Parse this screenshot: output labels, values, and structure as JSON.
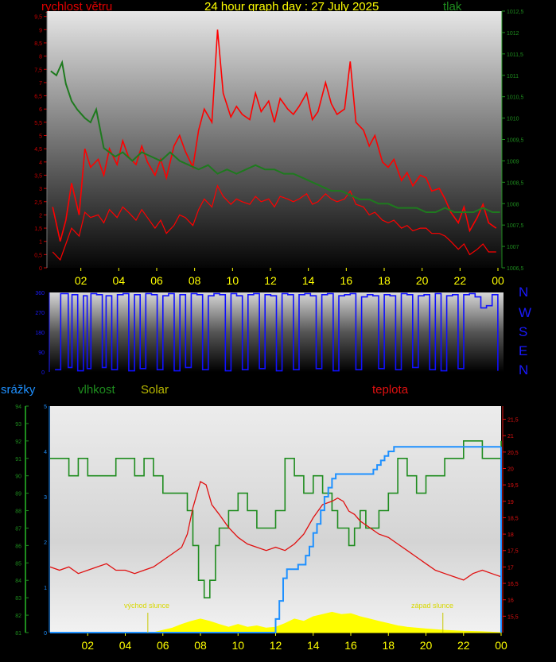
{
  "header": {
    "wind_label": "rychlost větru",
    "title": "24 hour graph day : 27 July 2025",
    "pressure_label": "tlak"
  },
  "direction_compass": [
    "N",
    "W",
    "S",
    "E",
    "N"
  ],
  "bottom_header": {
    "rain_label": "srážky",
    "humidity_label": "vlhkost",
    "solar_label": "Solar",
    "temp_label": "teplota"
  },
  "annotations": {
    "sunrise": "východ slunce",
    "sunset": "západ slunce"
  },
  "colors": {
    "wind": "#ff0000",
    "pressure": "#1e7a1e",
    "direction": "#1010ff",
    "humidity": "#1e8c1e",
    "temperature": "#e01010",
    "rain": "#1e90ff",
    "solar": "#ffff00"
  },
  "chart_data": [
    {
      "id": "wind_pressure",
      "type": "line",
      "x_ticks": [
        "02",
        "04",
        "06",
        "08",
        "10",
        "12",
        "14",
        "16",
        "18",
        "20",
        "22",
        "00"
      ],
      "left_axis": {
        "name": "rychlost větru",
        "ylim": [
          0,
          9.7
        ],
        "ticks": [
          "0",
          "0,5",
          "1",
          "1,5",
          "2",
          "2,5",
          "3",
          "3,5",
          "4",
          "4,5",
          "5",
          "5,5",
          "6",
          "6,5",
          "7",
          "7,5",
          "8",
          "8,5",
          "9",
          "9,5"
        ]
      },
      "right_axis": {
        "name": "tlak",
        "ylim": [
          1006.5,
          1012.5
        ],
        "ticks": [
          "1006,5",
          "1007",
          "1007,5",
          "1008",
          "1008,5",
          "1009",
          "1009,5",
          "1010",
          "1010,5",
          "1011",
          "1011,5",
          "1012",
          "1012,5"
        ]
      },
      "series": [
        {
          "name": "rychlost větru",
          "axis": "left",
          "style": "gust",
          "x": [
            0.3,
            0.7,
            1,
            1.3,
            1.7,
            2,
            2.3,
            2.7,
            3,
            3.3,
            3.7,
            4,
            4.3,
            4.7,
            5,
            5.3,
            5.7,
            6,
            6.3,
            6.7,
            7,
            7.3,
            7.7,
            8,
            8.3,
            8.7,
            9,
            9.3,
            9.7,
            10,
            10.3,
            10.7,
            11,
            11.3,
            11.7,
            12,
            12.3,
            12.7,
            13,
            13.3,
            13.7,
            14,
            14.3,
            14.7,
            15,
            15.3,
            15.7,
            16,
            16.3,
            16.7,
            17,
            17.3,
            17.7,
            18,
            18.3,
            18.7,
            19,
            19.3,
            19.7,
            20,
            20.3,
            20.7,
            21,
            21.3,
            21.7,
            22,
            22.3,
            22.7,
            23,
            23.3,
            23.7
          ],
          "y": [
            2.3,
            1.0,
            1.8,
            3.2,
            2.0,
            4.5,
            3.8,
            4.1,
            3.5,
            4.5,
            3.9,
            4.8,
            4.2,
            3.9,
            4.6,
            4.0,
            3.5,
            4.1,
            3.4,
            4.6,
            5.0,
            4.4,
            3.8,
            5.2,
            6.0,
            5.5,
            9.0,
            6.6,
            5.7,
            6.1,
            5.8,
            5.6,
            6.6,
            5.9,
            6.3,
            5.5,
            6.4,
            6.0,
            5.8,
            6.1,
            6.6,
            5.6,
            5.9,
            7.0,
            6.2,
            5.8,
            6.0,
            7.8,
            5.5,
            5.2,
            4.6,
            5.0,
            4.0,
            3.8,
            4.1,
            3.3,
            3.6,
            3.1,
            3.5,
            3.4,
            2.9,
            3.0,
            2.6,
            2.1,
            1.7,
            2.3,
            1.4,
            1.9,
            2.4,
            1.7,
            1.5
          ]
        },
        {
          "name": "rychlost větru (průměr)",
          "axis": "left",
          "style": "average",
          "x": [
            0.3,
            0.7,
            1,
            1.3,
            1.7,
            2,
            2.3,
            2.7,
            3,
            3.3,
            3.7,
            4,
            4.3,
            4.7,
            5,
            5.3,
            5.7,
            6,
            6.3,
            6.7,
            7,
            7.3,
            7.7,
            8,
            8.3,
            8.7,
            9,
            9.3,
            9.7,
            10,
            10.3,
            10.7,
            11,
            11.3,
            11.7,
            12,
            12.3,
            12.7,
            13,
            13.3,
            13.7,
            14,
            14.3,
            14.7,
            15,
            15.3,
            15.7,
            16,
            16.3,
            16.7,
            17,
            17.3,
            17.7,
            18,
            18.3,
            18.7,
            19,
            19.3,
            19.7,
            20,
            20.3,
            20.7,
            21,
            21.3,
            21.7,
            22,
            22.3,
            22.7,
            23,
            23.3,
            23.7
          ],
          "y": [
            0.6,
            0.3,
            0.9,
            1.5,
            1.2,
            2.1,
            1.9,
            2.0,
            1.7,
            2.2,
            1.9,
            2.3,
            2.1,
            1.8,
            2.2,
            1.9,
            1.5,
            1.8,
            1.3,
            1.6,
            2.0,
            1.9,
            1.6,
            2.2,
            2.6,
            2.3,
            3.1,
            2.7,
            2.4,
            2.6,
            2.5,
            2.4,
            2.7,
            2.5,
            2.6,
            2.3,
            2.7,
            2.6,
            2.5,
            2.6,
            2.8,
            2.4,
            2.5,
            2.8,
            2.6,
            2.5,
            2.6,
            2.9,
            2.4,
            2.3,
            2.0,
            2.1,
            1.8,
            1.7,
            1.8,
            1.5,
            1.6,
            1.4,
            1.5,
            1.5,
            1.3,
            1.3,
            1.2,
            1.0,
            0.7,
            0.9,
            0.5,
            0.7,
            0.9,
            0.6,
            0.6
          ]
        },
        {
          "name": "tlak",
          "axis": "right",
          "x": [
            0.2,
            0.5,
            0.8,
            1,
            1.3,
            1.6,
            2,
            2.3,
            2.6,
            3,
            3.3,
            3.6,
            4,
            4.5,
            5,
            5.5,
            6,
            6.5,
            7,
            7.5,
            8,
            8.5,
            9,
            9.5,
            10,
            10.5,
            11,
            11.5,
            12,
            12.5,
            13,
            13.5,
            14,
            14.5,
            15,
            15.5,
            16,
            16.5,
            17,
            17.5,
            18,
            18.5,
            19,
            19.5,
            20,
            20.5,
            21,
            21.5,
            22,
            22.5,
            23,
            23.5,
            23.9
          ],
          "y": [
            1011.1,
            1011.0,
            1011.3,
            1010.8,
            1010.4,
            1010.2,
            1010.0,
            1009.9,
            1010.2,
            1009.3,
            1009.2,
            1009.1,
            1009.2,
            1009.0,
            1009.2,
            1009.1,
            1009.0,
            1009.2,
            1009.0,
            1008.9,
            1008.8,
            1008.9,
            1008.7,
            1008.8,
            1008.7,
            1008.8,
            1008.9,
            1008.8,
            1008.8,
            1008.7,
            1008.7,
            1008.6,
            1008.5,
            1008.4,
            1008.3,
            1008.3,
            1008.2,
            1008.1,
            1008.1,
            1008.0,
            1008.0,
            1007.9,
            1007.9,
            1007.9,
            1007.8,
            1007.8,
            1007.9,
            1007.8,
            1007.8,
            1007.8,
            1007.9,
            1007.8,
            1007.8
          ]
        }
      ]
    },
    {
      "id": "wind_direction",
      "type": "line",
      "ylim": [
        0,
        360
      ],
      "y_ticks": [
        "0",
        "90",
        "180",
        "270",
        "360"
      ],
      "series": [
        {
          "name": "směr větru",
          "x": [
            0.3,
            0.6,
            1,
            1.2,
            1.5,
            1.8,
            2,
            2.2,
            2.5,
            2.8,
            3,
            3.3,
            3.6,
            3.9,
            4.2,
            4.5,
            4.8,
            5.1,
            5.4,
            5.7,
            6,
            6.3,
            6.6,
            6.9,
            7.2,
            7.5,
            7.8,
            8.1,
            8.4,
            8.7,
            9,
            9.3,
            9.6,
            9.9,
            10.2,
            10.5,
            10.8,
            11.1,
            11.4,
            11.7,
            12,
            12.3,
            12.6,
            12.9,
            13.2,
            13.5,
            13.8,
            14.1,
            14.4,
            14.7,
            15,
            15.3,
            15.6,
            15.9,
            16.2,
            16.5,
            16.8,
            17.1,
            17.4,
            17.7,
            18,
            18.3,
            18.6,
            18.9,
            19.2,
            19.5,
            19.8,
            20.1,
            20.4,
            20.7,
            21,
            21.3,
            21.6,
            21.9,
            22.2,
            22.5,
            22.8,
            23.1,
            23.4,
            23.7
          ],
          "y": [
            10,
            355,
            20,
            350,
            5,
            345,
            15,
            355,
            350,
            20,
            345,
            10,
            350,
            355,
            5,
            350,
            15,
            355,
            350,
            10,
            345,
            355,
            5,
            350,
            20,
            355,
            350,
            10,
            345,
            355,
            350,
            5,
            355,
            345,
            10,
            350,
            355,
            15,
            350,
            345,
            5,
            355,
            350,
            10,
            350,
            355,
            345,
            15,
            350,
            355,
            5,
            345,
            350,
            355,
            10,
            340,
            350,
            345,
            15,
            350,
            345,
            10,
            355,
            350,
            20,
            345,
            350,
            10,
            355,
            5,
            345,
            350,
            15,
            350,
            355,
            340,
            290,
            300,
            350,
            5
          ]
        }
      ]
    },
    {
      "id": "rain_humidity_solar_temp",
      "type": "line",
      "x_ticks": [
        "02",
        "04",
        "06",
        "08",
        "10",
        "12",
        "14",
        "16",
        "18",
        "20",
        "22",
        "00"
      ],
      "rain_axis": {
        "name": "srážky",
        "ylim": [
          0,
          5
        ],
        "ticks": [
          "0",
          "1",
          "2",
          "3",
          "4",
          "5"
        ]
      },
      "humidity_axis": {
        "name": "vlhkost",
        "ylim": [
          81,
          94
        ],
        "ticks": [
          "81",
          "82",
          "83",
          "84",
          "85",
          "86",
          "87",
          "88",
          "89",
          "90",
          "91",
          "92",
          "93",
          "94"
        ]
      },
      "temp_axis": {
        "name": "teplota",
        "ylim": [
          15.0,
          21.9
        ],
        "ticks": [
          "15,5",
          "16",
          "16,5",
          "17",
          "17,5",
          "18",
          "18,5",
          "19",
          "19,5",
          "20",
          "20,5",
          "21",
          "21,5"
        ]
      },
      "series": [
        {
          "name": "vlhkost",
          "axis": "humidity",
          "x": [
            0,
            0.5,
            1,
            1.5,
            2,
            2.5,
            3,
            3.5,
            4,
            4.5,
            5,
            5.5,
            6,
            6.5,
            7,
            7.3,
            7.6,
            7.9,
            8.2,
            8.5,
            8.8,
            9,
            9.5,
            10,
            10.5,
            11,
            11.5,
            12,
            12.5,
            13,
            13.5,
            14,
            14.5,
            15,
            15.3,
            15.6,
            15.9,
            16.2,
            16.5,
            16.8,
            17,
            17.5,
            18,
            18.5,
            19,
            19.5,
            20,
            20.5,
            21,
            21.5,
            22,
            22.5,
            23,
            23.5,
            24
          ],
          "y": [
            91,
            91,
            90,
            91,
            90,
            90,
            90,
            91,
            91,
            90,
            91,
            90,
            89,
            89,
            89,
            88,
            86,
            84,
            83,
            84,
            86,
            87,
            88,
            89,
            88,
            87,
            87,
            88,
            91,
            90,
            89,
            90,
            89,
            88,
            87,
            87,
            86,
            87,
            88,
            87,
            87,
            88,
            89,
            91,
            90,
            89,
            90,
            90,
            91,
            91,
            92,
            92,
            91,
            91,
            92
          ]
        },
        {
          "name": "teplota",
          "axis": "temp",
          "x": [
            0,
            0.5,
            1,
            1.5,
            2,
            2.5,
            3,
            3.5,
            4,
            4.5,
            5,
            5.5,
            6,
            6.5,
            7,
            7.3,
            7.6,
            8,
            8.3,
            8.6,
            9,
            9.5,
            10,
            10.5,
            11,
            11.5,
            12,
            12.5,
            13,
            13.5,
            14,
            14.5,
            15,
            15.3,
            15.6,
            15.9,
            16.2,
            16.5,
            17,
            17.5,
            18,
            18.5,
            19,
            19.5,
            20,
            20.5,
            21,
            21.5,
            22,
            22.5,
            23,
            23.5,
            24
          ],
          "y": [
            17.0,
            16.9,
            17.0,
            16.8,
            16.9,
            17.0,
            17.1,
            16.9,
            16.9,
            16.8,
            16.9,
            17.0,
            17.2,
            17.4,
            17.6,
            18.0,
            18.8,
            19.6,
            19.5,
            18.9,
            18.6,
            18.2,
            17.9,
            17.7,
            17.6,
            17.5,
            17.6,
            17.5,
            17.7,
            18.0,
            18.5,
            18.9,
            19.0,
            19.1,
            19.0,
            18.7,
            18.6,
            18.4,
            18.2,
            18.0,
            17.9,
            17.7,
            17.5,
            17.3,
            17.1,
            16.9,
            16.8,
            16.7,
            16.6,
            16.8,
            16.9,
            16.8,
            16.7
          ]
        },
        {
          "name": "srážky",
          "axis": "rain",
          "x": [
            0,
            11.9,
            12.0,
            12.2,
            12.4,
            12.6,
            12.8,
            13.0,
            13.2,
            13.4,
            13.6,
            13.8,
            14.0,
            14.2,
            14.4,
            14.6,
            14.8,
            15.0,
            15.2,
            15.4,
            15.6,
            15.8,
            16.0,
            16.5,
            17.0,
            17.2,
            17.4,
            17.6,
            17.8,
            18.0,
            18.3,
            24
          ],
          "y": [
            0,
            0,
            0.3,
            0.7,
            1.2,
            1.4,
            1.4,
            1.4,
            1.5,
            1.5,
            1.7,
            1.9,
            2.2,
            2.4,
            2.7,
            3.0,
            3.2,
            3.4,
            3.5,
            3.5,
            3.5,
            3.5,
            3.5,
            3.5,
            3.5,
            3.6,
            3.7,
            3.8,
            3.9,
            4.0,
            4.1,
            4.1
          ]
        },
        {
          "name": "Solar",
          "axis": "rain",
          "style": "area",
          "x": [
            0,
            5.5,
            6,
            6.5,
            7,
            7.5,
            8,
            8.5,
            9,
            9.5,
            10,
            10.5,
            11,
            11.5,
            12,
            12.5,
            13,
            13.5,
            14,
            14.5,
            15,
            15.5,
            16,
            16.5,
            17,
            17.5,
            18,
            18.5,
            19,
            20,
            21,
            22,
            23,
            24
          ],
          "y": [
            0,
            0,
            0.05,
            0.1,
            0.18,
            0.25,
            0.3,
            0.25,
            0.18,
            0.12,
            0.18,
            0.12,
            0.15,
            0.1,
            0.12,
            0.2,
            0.3,
            0.25,
            0.35,
            0.4,
            0.45,
            0.4,
            0.42,
            0.35,
            0.3,
            0.25,
            0.2,
            0.15,
            0.12,
            0.08,
            0.05,
            0.03,
            0.02,
            0
          ]
        }
      ]
    }
  ]
}
